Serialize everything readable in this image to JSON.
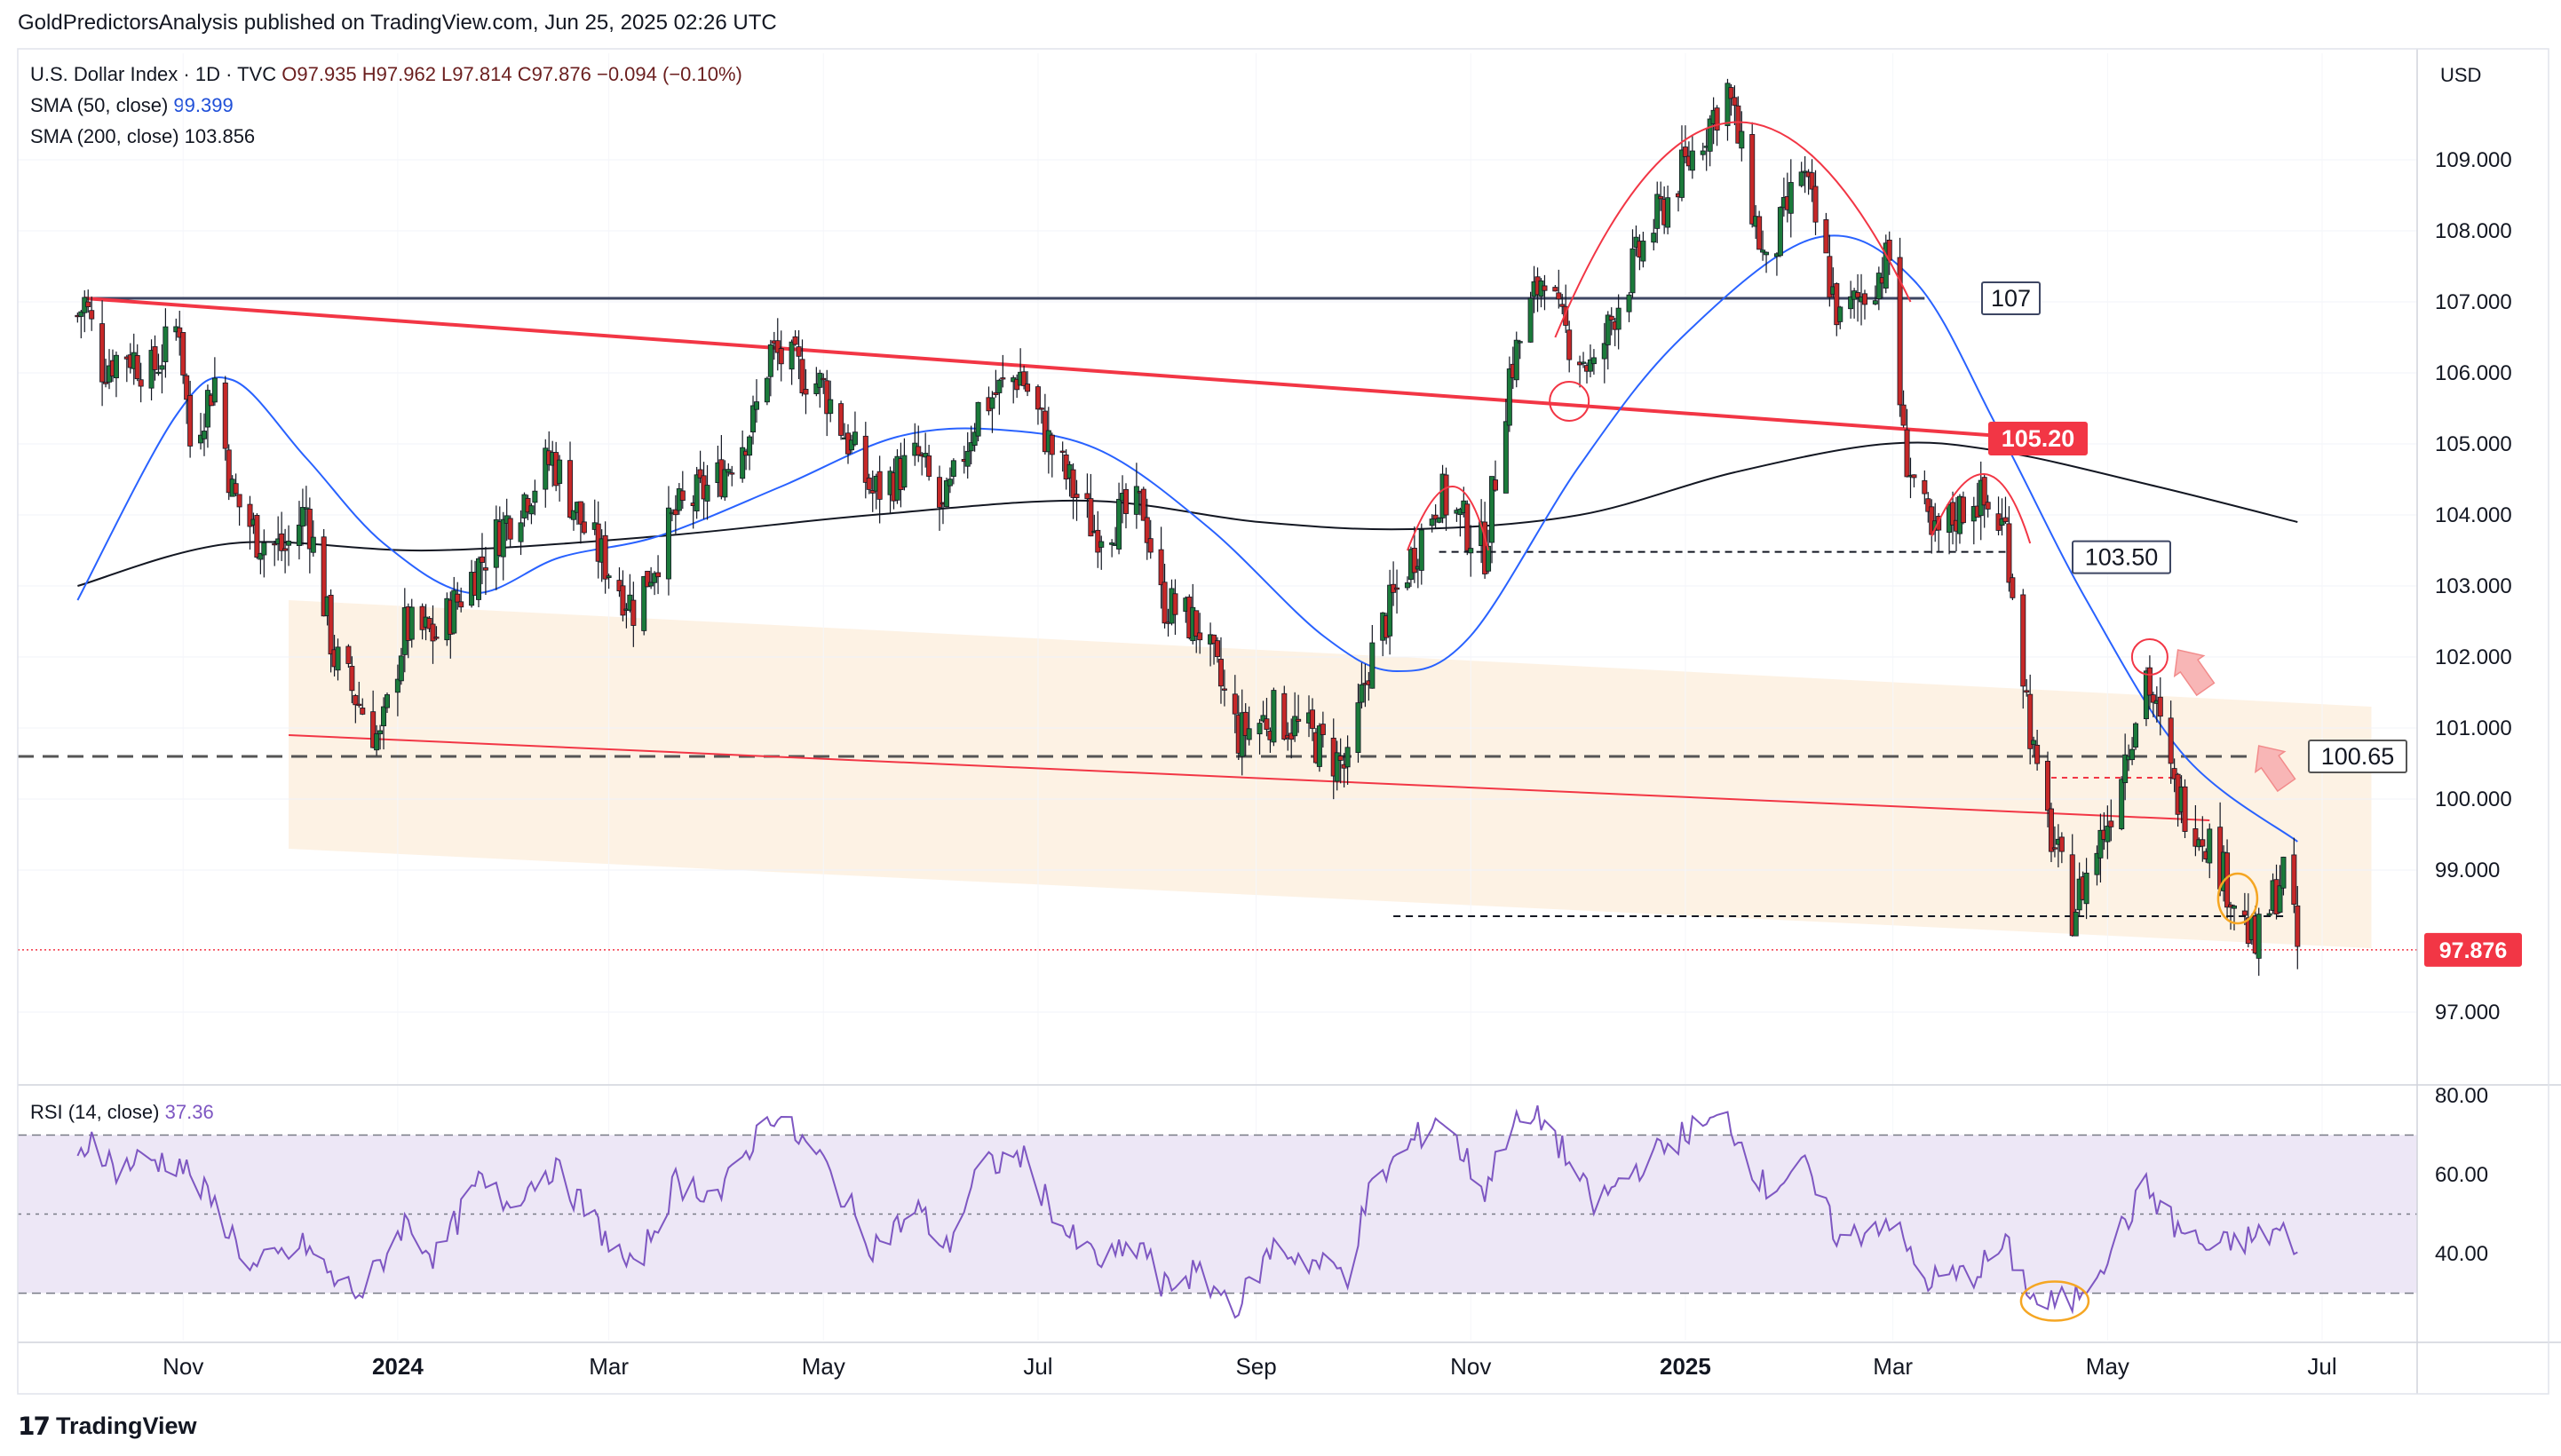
{
  "header": {
    "publisher": "GoldPredictorsAnalysis published on TradingView.com, Jun 25, 2025 02:26 UTC"
  },
  "legend": {
    "symbol": "U.S. Dollar Index · 1D · TVC",
    "ohlc": "O97.935 H97.962 L97.814 C97.876 −0.094 (−0.10%)",
    "sma50_label": "SMA (50, close)",
    "sma50_value": "99.399",
    "sma200_label": "SMA (200, close)",
    "sma200_value": "103.856"
  },
  "rsi_legend": {
    "label": "RSI (14, close)",
    "value": "37.36"
  },
  "currency": "USD",
  "footer": {
    "brand": "TradingView"
  },
  "colors": {
    "up": "#26a69a",
    "up_dark": "#1b7a3a",
    "down": "#c62828",
    "sma50": "#2962ff",
    "sma200": "#131722",
    "trend": "#f23645",
    "rsi": "#7e57c2",
    "rsi_band": "#ede7f6",
    "channel": "#fdf0df",
    "orange": "#f5a623"
  },
  "chart_data": [
    {
      "type": "candlestick",
      "title": "U.S. Dollar Index · 1D · TVC",
      "x_ticks": [
        "Nov",
        "2024",
        "Mar",
        "May",
        "Jul",
        "Sep",
        "Nov",
        "2025",
        "Mar",
        "May",
        "Jul"
      ],
      "y_ticks": [
        "109.000",
        "108.000",
        "107.000",
        "106.000",
        "105.000",
        "104.000",
        "103.000",
        "102.000",
        "101.000",
        "100.000",
        "99.000",
        "97.000"
      ],
      "ylim": [
        96.0,
        110.5
      ],
      "last_price": "97.876",
      "levels": [
        {
          "label": "107",
          "value": 107.05
        },
        {
          "label": "105.20",
          "value": 105.1
        },
        {
          "label": "103.50",
          "value": 103.48
        },
        {
          "label": "100.65",
          "value": 100.6
        }
      ],
      "price_series": [
        [
          "2023-10-02",
          106.8
        ],
        [
          "2023-10-04",
          107.0
        ],
        [
          "2023-10-09",
          106.1
        ],
        [
          "2023-10-16",
          106.3
        ],
        [
          "2023-10-23",
          106.0
        ],
        [
          "2023-10-31",
          106.7
        ],
        [
          "2023-11-03",
          105.0
        ],
        [
          "2023-11-10",
          105.9
        ],
        [
          "2023-11-15",
          104.3
        ],
        [
          "2023-11-22",
          103.7
        ],
        [
          "2023-11-30",
          103.5
        ],
        [
          "2023-12-06",
          104.1
        ],
        [
          "2023-12-14",
          102.0
        ],
        [
          "2023-12-27",
          100.8
        ],
        [
          "2024-01-03",
          102.4
        ],
        [
          "2024-01-12",
          102.3
        ],
        [
          "2024-01-24",
          103.3
        ],
        [
          "2024-02-02",
          104.0
        ],
        [
          "2024-02-14",
          104.8
        ],
        [
          "2024-02-23",
          103.8
        ],
        [
          "2024-03-08",
          102.7
        ],
        [
          "2024-03-20",
          104.0
        ],
        [
          "2024-04-01",
          104.5
        ],
        [
          "2024-04-11",
          105.3
        ],
        [
          "2024-04-16",
          106.3
        ],
        [
          "2024-05-01",
          105.8
        ],
        [
          "2024-05-15",
          104.3
        ],
        [
          "2024-05-28",
          104.8
        ],
        [
          "2024-06-04",
          104.0
        ],
        [
          "2024-06-14",
          105.5
        ],
        [
          "2024-06-26",
          106.0
        ],
        [
          "2024-07-05",
          104.9
        ],
        [
          "2024-07-17",
          103.8
        ],
        [
          "2024-07-31",
          104.1
        ],
        [
          "2024-08-05",
          102.8
        ],
        [
          "2024-08-16",
          102.4
        ],
        [
          "2024-08-27",
          100.9
        ],
        [
          "2024-09-06",
          101.2
        ],
        [
          "2024-09-16",
          100.9
        ],
        [
          "2024-09-27",
          100.4
        ],
        [
          "2024-10-03",
          101.9
        ],
        [
          "2024-10-10",
          102.8
        ],
        [
          "2024-10-23",
          104.3
        ],
        [
          "2024-11-05",
          103.5
        ],
        [
          "2024-11-12",
          106.0
        ],
        [
          "2024-11-22",
          107.5
        ],
        [
          "2024-11-26",
          106.7
        ],
        [
          "2024-12-06",
          106.0
        ],
        [
          "2024-12-12",
          106.9
        ],
        [
          "2024-12-20",
          107.8
        ],
        [
          "2025-01-02",
          109.0
        ],
        [
          "2025-01-13",
          110.0
        ],
        [
          "2025-01-24",
          107.4
        ],
        [
          "2025-02-03",
          108.9
        ],
        [
          "2025-02-14",
          106.7
        ],
        [
          "2025-02-28",
          107.6
        ],
        [
          "2025-03-04",
          105.0
        ],
        [
          "2025-03-12",
          103.6
        ],
        [
          "2025-03-24",
          104.3
        ],
        [
          "2025-04-02",
          103.8
        ],
        [
          "2025-04-11",
          100.2
        ],
        [
          "2025-04-21",
          98.4
        ],
        [
          "2025-05-01",
          99.7
        ],
        [
          "2025-05-12",
          101.8
        ],
        [
          "2025-05-20",
          100.1
        ],
        [
          "2025-05-30",
          99.4
        ],
        [
          "2025-06-12",
          97.9
        ],
        [
          "2025-06-20",
          99.0
        ],
        [
          "2025-06-24",
          97.9
        ]
      ],
      "sma50": [
        [
          "2023-10-02",
          102.8
        ],
        [
          "2023-10-30",
          105.4
        ],
        [
          "2023-11-15",
          105.9
        ],
        [
          "2023-12-06",
          104.8
        ],
        [
          "2023-12-28",
          103.6
        ],
        [
          "2024-01-22",
          102.9
        ],
        [
          "2024-02-16",
          103.4
        ],
        [
          "2024-03-15",
          103.7
        ],
        [
          "2024-04-19",
          104.4
        ],
        [
          "2024-05-22",
          105.1
        ],
        [
          "2024-06-20",
          105.2
        ],
        [
          "2024-07-19",
          104.9
        ],
        [
          "2024-08-19",
          103.8
        ],
        [
          "2024-09-20",
          102.3
        ],
        [
          "2024-10-11",
          101.8
        ],
        [
          "2024-11-01",
          102.3
        ],
        [
          "2024-12-02",
          104.7
        ],
        [
          "2024-12-31",
          106.5
        ],
        [
          "2025-02-07",
          107.9
        ],
        [
          "2025-03-07",
          107.3
        ],
        [
          "2025-03-31",
          105.2
        ],
        [
          "2025-04-25",
          102.8
        ],
        [
          "2025-05-23",
          100.6
        ],
        [
          "2025-06-24",
          99.4
        ]
      ],
      "sma200": [
        [
          "2023-10-02",
          103.0
        ],
        [
          "2023-11-15",
          103.6
        ],
        [
          "2024-01-10",
          103.5
        ],
        [
          "2024-03-15",
          103.7
        ],
        [
          "2024-05-15",
          104.0
        ],
        [
          "2024-07-15",
          104.2
        ],
        [
          "2024-09-02",
          103.9
        ],
        [
          "2024-10-15",
          103.8
        ],
        [
          "2024-12-02",
          104.0
        ],
        [
          "2025-01-15",
          104.6
        ],
        [
          "2025-02-27",
          105.0
        ],
        [
          "2025-03-31",
          104.9
        ],
        [
          "2025-05-15",
          104.4
        ],
        [
          "2025-06-24",
          103.9
        ]
      ]
    },
    {
      "type": "line",
      "title": "RSI (14, close)",
      "y_ticks": [
        "80.00",
        "60.00",
        "40.00"
      ],
      "ylim": [
        18,
        82
      ],
      "bands": [
        70,
        50,
        30
      ],
      "series": [
        {
          "values": [
            [
              "2023-10-02",
              63
            ],
            [
              "2023-10-06",
              70
            ],
            [
              "2023-10-13",
              61
            ],
            [
              "2023-10-20",
              64
            ],
            [
              "2023-10-31",
              63
            ],
            [
              "2023-11-10",
              52
            ],
            [
              "2023-11-21",
              36
            ],
            [
              "2023-12-06",
              42
            ],
            [
              "2023-12-14",
              33
            ],
            [
              "2023-12-22",
              30
            ],
            [
              "2024-01-03",
              48
            ],
            [
              "2024-01-12",
              39
            ],
            [
              "2024-01-24",
              58
            ],
            [
              "2024-02-01",
              53
            ],
            [
              "2024-02-14",
              62
            ],
            [
              "2024-03-08",
              35
            ],
            [
              "2024-03-20",
              58
            ],
            [
              "2024-04-02",
              55
            ],
            [
              "2024-04-16",
              76
            ],
            [
              "2024-05-01",
              63
            ],
            [
              "2024-05-15",
              42
            ],
            [
              "2024-05-28",
              51
            ],
            [
              "2024-06-05",
              41
            ],
            [
              "2024-06-14",
              61
            ],
            [
              "2024-06-26",
              65
            ],
            [
              "2024-07-10",
              44
            ],
            [
              "2024-07-19",
              38
            ],
            [
              "2024-07-31",
              42
            ],
            [
              "2024-08-05",
              31
            ],
            [
              "2024-08-14",
              35
            ],
            [
              "2024-08-27",
              27
            ],
            [
              "2024-09-06",
              42
            ],
            [
              "2024-09-16",
              38
            ],
            [
              "2024-09-27",
              35
            ],
            [
              "2024-10-03",
              55
            ],
            [
              "2024-10-10",
              63
            ],
            [
              "2024-10-23",
              75
            ],
            [
              "2024-11-05",
              56
            ],
            [
              "2024-11-12",
              72
            ],
            [
              "2024-11-22",
              74
            ],
            [
              "2024-12-06",
              52
            ],
            [
              "2024-12-20",
              63
            ],
            [
              "2025-01-02",
              71
            ],
            [
              "2025-01-13",
              74
            ],
            [
              "2025-01-24",
              56
            ],
            [
              "2025-02-03",
              63
            ],
            [
              "2025-02-14",
              43
            ],
            [
              "2025-02-28",
              49
            ],
            [
              "2025-03-10",
              33
            ],
            [
              "2025-03-24",
              35
            ],
            [
              "2025-04-02",
              42
            ],
            [
              "2025-04-11",
              27
            ],
            [
              "2025-04-21",
              28
            ],
            [
              "2025-05-01",
              40
            ],
            [
              "2025-05-12",
              57
            ],
            [
              "2025-05-20",
              47
            ],
            [
              "2025-05-30",
              41
            ],
            [
              "2025-06-12",
              44
            ],
            [
              "2025-06-20",
              46
            ],
            [
              "2025-06-24",
              37.4
            ]
          ]
        }
      ]
    }
  ]
}
